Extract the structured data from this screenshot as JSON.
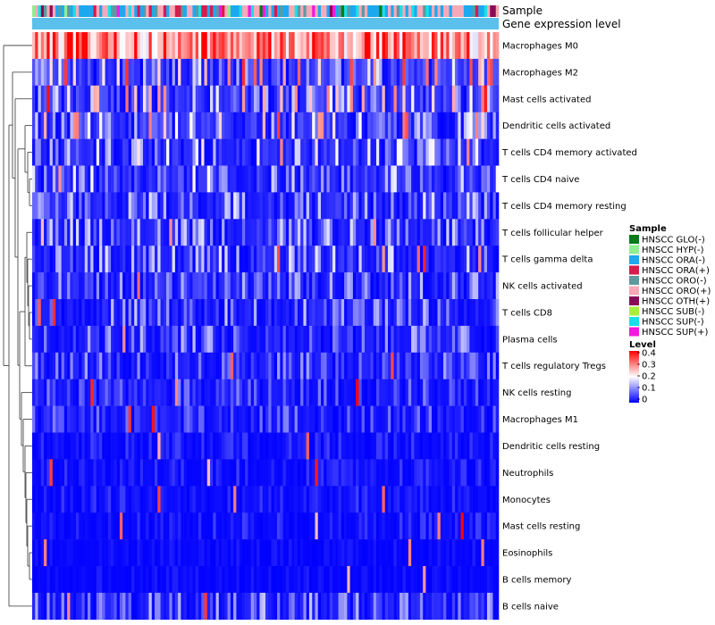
{
  "chart_data": {
    "type": "heatmap",
    "annotation_labels": [
      "Sample",
      "Gene expression level"
    ],
    "rows": [
      {
        "label": "Macrophages M0",
        "mean": 0.3
      },
      {
        "label": "Macrophages M2",
        "mean": 0.14
      },
      {
        "label": "Mast cells activated",
        "mean": 0.12
      },
      {
        "label": "Dendritic cells activated",
        "mean": 0.12
      },
      {
        "label": "T cells CD4 memory activated",
        "mean": 0.09
      },
      {
        "label": "T cells CD4 naive",
        "mean": 0.08
      },
      {
        "label": "T cells CD4 memory resting",
        "mean": 0.07
      },
      {
        "label": "T cells follicular helper",
        "mean": 0.07
      },
      {
        "label": "T cells gamma delta",
        "mean": 0.07
      },
      {
        "label": "NK cells activated",
        "mean": 0.06
      },
      {
        "label": "T cells CD8",
        "mean": 0.06
      },
      {
        "label": "Plasma cells",
        "mean": 0.06
      },
      {
        "label": "T cells regulatory  Tregs",
        "mean": 0.05
      },
      {
        "label": "NK cells resting",
        "mean": 0.04
      },
      {
        "label": "Macrophages M1",
        "mean": 0.04
      },
      {
        "label": "Dendritic cells resting",
        "mean": 0.02
      },
      {
        "label": "Neutrophils",
        "mean": 0.02
      },
      {
        "label": "Monocytes",
        "mean": 0.02
      },
      {
        "label": "Mast cells resting",
        "mean": 0.02
      },
      {
        "label": "Eosinophils",
        "mean": 0.01
      },
      {
        "label": "B cells memory",
        "mean": 0.01
      },
      {
        "label": "B cells naive",
        "mean": 0.06
      }
    ],
    "n_samples": 160,
    "sample_legend": {
      "title": "Sample",
      "items": [
        {
          "label": "HNSCC GLO(-)",
          "color": "#0a7a1a"
        },
        {
          "label": "HNSCC HYP(-)",
          "color": "#90ee90"
        },
        {
          "label": "HNSCC ORA(-)",
          "color": "#1ba9f0"
        },
        {
          "label": "HNSCC ORA(+)",
          "color": "#d81b4a"
        },
        {
          "label": "HNSCC ORO(-)",
          "color": "#5b9aa0"
        },
        {
          "label": "HNSCC ORO(+)",
          "color": "#f6a9b6"
        },
        {
          "label": "HNSCC OTH(+)",
          "color": "#8b0a57"
        },
        {
          "label": "HNSCC SUB(-)",
          "color": "#a6f03a"
        },
        {
          "label": "HNSCC SUP(-)",
          "color": "#17e0e8"
        },
        {
          "label": "HNSCC SUP(+)",
          "color": "#f019e0"
        }
      ]
    },
    "level_legend": {
      "title": "Level",
      "range": [
        0,
        0.4
      ],
      "ticks": [
        "0.4",
        "0.3",
        "0.2",
        "0.1",
        "0"
      ],
      "colors": {
        "low": "#0000ff",
        "mid": "#ffffff",
        "high": "#ff0000"
      }
    },
    "expression_annotation_color": "#5bc0eb"
  }
}
